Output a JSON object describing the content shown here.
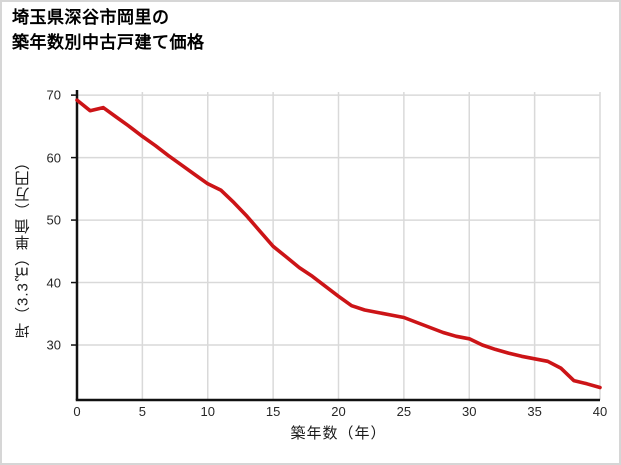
{
  "chart_data": {
    "type": "line",
    "title": "埼玉県深谷市岡里の\n築年数別中古戸建て価格",
    "xlabel": "築年数（年）",
    "ylabel": "坪（3.3㎡）単価（万円）",
    "x": [
      0,
      1,
      2,
      3,
      4,
      5,
      6,
      7,
      8,
      9,
      10,
      11,
      12,
      13,
      14,
      15,
      16,
      17,
      18,
      19,
      20,
      21,
      22,
      23,
      24,
      25,
      26,
      27,
      28,
      29,
      30,
      31,
      32,
      33,
      34,
      35,
      36,
      37,
      38,
      39,
      40
    ],
    "values": [
      69.2,
      67.5,
      68.0,
      66.5,
      65.0,
      63.4,
      61.9,
      60.3,
      58.8,
      57.3,
      55.8,
      54.8,
      52.8,
      50.6,
      48.2,
      45.8,
      44.1,
      42.4,
      41.0,
      39.4,
      37.8,
      36.3,
      35.6,
      35.2,
      34.8,
      34.4,
      33.6,
      32.8,
      32.0,
      31.4,
      31.0,
      30.0,
      29.3,
      28.7,
      28.2,
      27.8,
      27.4,
      26.3,
      24.3,
      23.8,
      23.2
    ],
    "xticks": [
      0,
      5,
      10,
      15,
      20,
      25,
      30,
      35,
      40
    ],
    "yticks": [
      30,
      40,
      50,
      60,
      70
    ],
    "xlim": [
      0,
      40
    ],
    "ylim": [
      21.2,
      70.5
    ],
    "grid": true,
    "legend_position": "none",
    "line_color": "#cc1417",
    "grid_color": "#d9d9d9",
    "axis_color": "#111111",
    "tick_label_color": "#262626",
    "background_color": "#ffffff"
  }
}
